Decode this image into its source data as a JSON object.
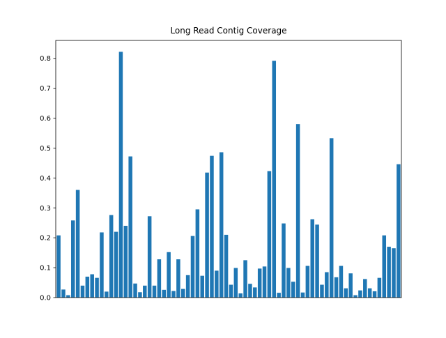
{
  "chart_data": {
    "type": "bar",
    "title": "Long Read Contig Coverage",
    "xlabel": "",
    "ylabel": "",
    "ylim": [
      0,
      0.86
    ],
    "yticks": [
      0.0,
      0.1,
      0.2,
      0.3,
      0.4,
      0.5,
      0.6,
      0.7,
      0.8
    ],
    "ytick_labels": [
      "0.0",
      "0.1",
      "0.2",
      "0.3",
      "0.4",
      "0.5",
      "0.6",
      "0.7",
      "0.8"
    ],
    "show_xticks": false,
    "grid": false,
    "bar_color": "#1f77b4",
    "values": [
      0.208,
      0.027,
      0.008,
      0.258,
      0.36,
      0.04,
      0.07,
      0.078,
      0.066,
      0.218,
      0.02,
      0.276,
      0.22,
      0.822,
      0.24,
      0.472,
      0.047,
      0.018,
      0.04,
      0.272,
      0.04,
      0.128,
      0.026,
      0.152,
      0.022,
      0.128,
      0.029,
      0.075,
      0.206,
      0.295,
      0.073,
      0.418,
      0.474,
      0.09,
      0.486,
      0.21,
      0.043,
      0.099,
      0.014,
      0.125,
      0.046,
      0.034,
      0.097,
      0.104,
      0.423,
      0.792,
      0.016,
      0.248,
      0.099,
      0.053,
      0.58,
      0.017,
      0.106,
      0.262,
      0.244,
      0.043,
      0.085,
      0.533,
      0.068,
      0.106,
      0.031,
      0.081,
      0.008,
      0.024,
      0.062,
      0.031,
      0.021,
      0.066,
      0.208,
      0.17,
      0.165,
      0.446
    ]
  }
}
